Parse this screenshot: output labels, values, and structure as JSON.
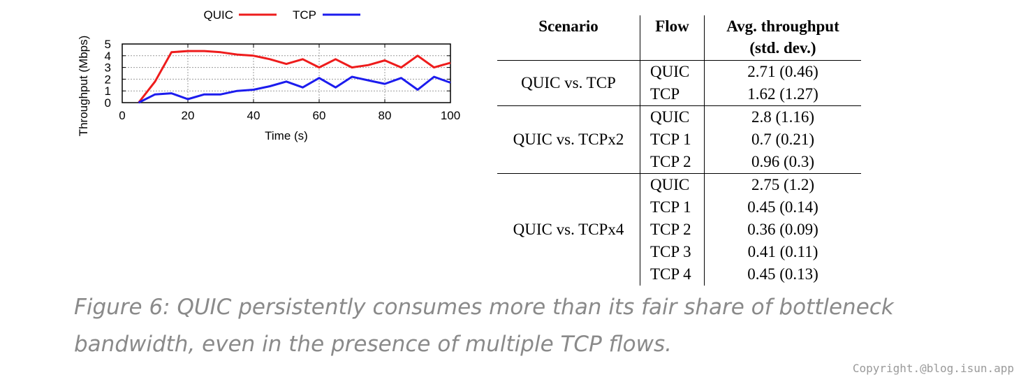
{
  "chart_data": {
    "type": "line",
    "xlabel": "Time (s)",
    "ylabel": "Throughput (Mbps)",
    "xlim": [
      0,
      100
    ],
    "ylim": [
      0,
      5
    ],
    "xticks": [
      0,
      20,
      40,
      60,
      80,
      100
    ],
    "yticks": [
      0,
      1,
      2,
      3,
      4,
      5
    ],
    "grid": true,
    "legend_position": "top",
    "series": [
      {
        "name": "QUIC",
        "color": "#ee1c1c",
        "x": [
          5,
          10,
          15,
          20,
          25,
          30,
          35,
          40,
          45,
          50,
          55,
          60,
          65,
          70,
          75,
          80,
          85,
          90,
          95,
          100
        ],
        "y": [
          0,
          1.8,
          4.3,
          4.4,
          4.4,
          4.3,
          4.1,
          4.0,
          3.7,
          3.3,
          3.7,
          3.0,
          3.7,
          3.0,
          3.2,
          3.6,
          3.0,
          4.0,
          3.0,
          3.4
        ]
      },
      {
        "name": "TCP",
        "color": "#1c1cee",
        "x": [
          5,
          10,
          15,
          20,
          25,
          30,
          35,
          40,
          45,
          50,
          55,
          60,
          65,
          70,
          75,
          80,
          85,
          90,
          95,
          100
        ],
        "y": [
          0,
          0.7,
          0.8,
          0.3,
          0.7,
          0.7,
          1.0,
          1.1,
          1.4,
          1.8,
          1.3,
          2.1,
          1.3,
          2.2,
          1.9,
          1.6,
          2.1,
          1.1,
          2.2,
          1.7
        ]
      }
    ]
  },
  "table": {
    "headers": {
      "scenario": "Scenario",
      "flow": "Flow",
      "throughput_line1": "Avg. throughput",
      "throughput_line2": "(std. dev.)"
    },
    "groups": [
      {
        "scenario": "QUIC vs. TCP",
        "rows": [
          {
            "flow": "QUIC",
            "value": "2.71 (0.46)"
          },
          {
            "flow": "TCP",
            "value": "1.62 (1.27)"
          }
        ]
      },
      {
        "scenario": "QUIC vs. TCPx2",
        "rows": [
          {
            "flow": "QUIC",
            "value": "2.8 (1.16)"
          },
          {
            "flow": "TCP 1",
            "value": "0.7 (0.21)"
          },
          {
            "flow": "TCP 2",
            "value": "0.96 (0.3)"
          }
        ]
      },
      {
        "scenario": "QUIC vs. TCPx4",
        "rows": [
          {
            "flow": "QUIC",
            "value": "2.75 (1.2)"
          },
          {
            "flow": "TCP 1",
            "value": "0.45 (0.14)"
          },
          {
            "flow": "TCP 2",
            "value": "0.36 (0.09)"
          },
          {
            "flow": "TCP 3",
            "value": "0.41 (0.11)"
          },
          {
            "flow": "TCP 4",
            "value": "0.45 (0.13)"
          }
        ]
      }
    ]
  },
  "caption": "Figure 6: QUIC persistently consumes more than its fair share of bottleneck bandwidth, even in the presence of multiple TCP flows.",
  "watermark": "Copyright.@blog.isun.app"
}
